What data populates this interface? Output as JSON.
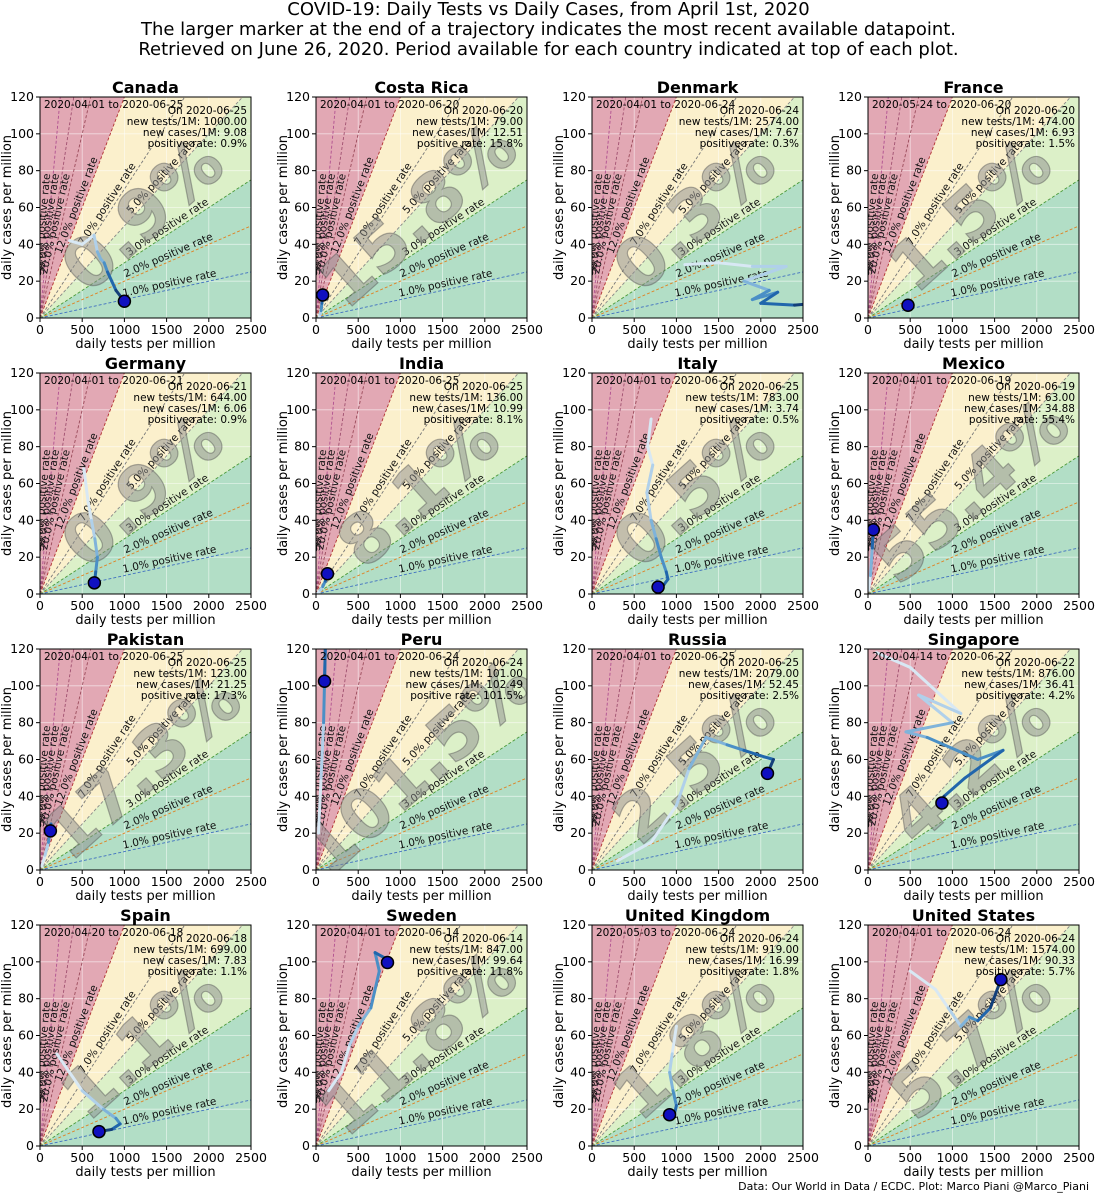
{
  "header": {
    "lines": [
      "COVID-19: Daily Tests vs Daily Cases, from April 1st, 2020",
      "The larger marker at the end of a trajectory indicates the most recent available datapoint.",
      "Retrieved on June 26, 2020. Period available for each country indicated at top of each plot."
    ]
  },
  "footer": "Data: Our World in Data / ECDC. Plot: Marco Piani @Marco_Piani",
  "rate_lines": [
    {
      "rate": 50.0,
      "label": "50.0% positive rate",
      "color": "#b05090"
    },
    {
      "rate": 30.0,
      "label": "30.0% positive rate",
      "color": "#a05070"
    },
    {
      "rate": 20.0,
      "label": "20.0% positive rate",
      "color": "#9a4a5a"
    },
    {
      "rate": 12.0,
      "label": "12.0% positive rate",
      "color": "#b03030"
    },
    {
      "rate": 7.0,
      "label": "7.0% positive rate",
      "color": "#777777"
    },
    {
      "rate": 5.0,
      "label": "5.0% positive rate",
      "color": "#888888"
    },
    {
      "rate": 3.0,
      "label": "3.0% positive rate",
      "color": "#4a9a3a"
    },
    {
      "rate": 2.0,
      "label": "2.0% positive rate",
      "color": "#e08020"
    },
    {
      "rate": 1.0,
      "label": "1.0% positive rate",
      "color": "#4070c0"
    }
  ],
  "zone_colors": [
    "#e2a8b4",
    "#fbf0cc",
    "#dcf0c8",
    "#b2dec6"
  ],
  "axis": {
    "xlabel": "daily tests per million",
    "ylabel": "daily cases per million",
    "xlim": [
      0,
      2500
    ],
    "ylim": [
      0,
      120
    ],
    "xticks": [
      0,
      500,
      1000,
      1500,
      2000,
      2500
    ],
    "yticks": [
      0,
      20,
      40,
      60,
      80,
      100,
      120
    ]
  },
  "chart_data": [
    {
      "type": "line",
      "country": "Canada",
      "period": "2020-04-01 to 2020-06-25",
      "date": "On 2020-06-25",
      "tests": "new tests/1M: 1000.00",
      "cases": "new cases/1M: 9.08",
      "rate": "positive rate: 0.9%",
      "watermark": "0.9%",
      "x": [
        350,
        500,
        640,
        680,
        720,
        760,
        800,
        850,
        900,
        1000
      ],
      "y": [
        42,
        40,
        45,
        36,
        32,
        30,
        25,
        20,
        15,
        9.08
      ]
    },
    {
      "type": "line",
      "country": "Costa Rica",
      "period": "2020-04-01 to 2020-06-20",
      "date": "On 2020-06-20",
      "tests": "new tests/1M: 79.00",
      "cases": "new cases/1M: 12.51",
      "rate": "positive rate: 15.8%",
      "watermark": "15.8%",
      "x": [
        40,
        50,
        60,
        70,
        79
      ],
      "y": [
        1,
        2,
        4,
        8,
        12.51
      ]
    },
    {
      "type": "line",
      "country": "Denmark",
      "period": "2020-04-01 to 2020-06-24",
      "date": "On 2020-06-24",
      "tests": "new tests/1M: 2574.00",
      "cases": "new cases/1M: 7.67",
      "rate": "positive rate: 0.3%",
      "watermark": "0.3%",
      "x": [
        1100,
        1500,
        1900,
        2300,
        1800,
        2100,
        1900,
        2200,
        2000,
        2400,
        2574
      ],
      "y": [
        29,
        30,
        28,
        28,
        20,
        15,
        10,
        14,
        8,
        7,
        7.67
      ]
    },
    {
      "type": "line",
      "country": "France",
      "period": "2020-05-24 to 2020-06-20",
      "date": "On 2020-06-20",
      "tests": "new tests/1M: 474.00",
      "cases": "new cases/1M: 6.93",
      "rate": "positive rate: 1.5%",
      "watermark": "1.5%",
      "x": [
        470,
        472,
        474
      ],
      "y": [
        8,
        7.5,
        6.93
      ]
    },
    {
      "type": "line",
      "country": "Germany",
      "period": "2020-04-01 to 2020-06-21",
      "date": "On 2020-06-21",
      "tests": "new tests/1M: 644.00",
      "cases": "new cases/1M: 6.06",
      "rate": "positive rate: 0.9%",
      "watermark": "0.9%",
      "x": [
        520,
        570,
        610,
        650,
        680,
        660,
        650,
        644
      ],
      "y": [
        68,
        50,
        40,
        30,
        20,
        12,
        8,
        6.06
      ]
    },
    {
      "type": "line",
      "country": "India",
      "period": "2020-04-01 to 2020-06-25",
      "date": "On 2020-06-25",
      "tests": "new tests/1M: 136.00",
      "cases": "new cases/1M: 10.99",
      "rate": "positive rate: 8.1%",
      "watermark": "8.1%",
      "x": [
        20,
        50,
        80,
        110,
        136
      ],
      "y": [
        0.5,
        2,
        4,
        7,
        10.99
      ]
    },
    {
      "type": "line",
      "country": "Italy",
      "period": "2020-04-01 to 2020-06-25",
      "date": "On 2020-06-25",
      "tests": "new tests/1M: 783.00",
      "cases": "new cases/1M: 3.74",
      "rate": "positive rate: 0.5%",
      "watermark": "0.5%",
      "x": [
        700,
        660,
        720,
        650,
        700,
        760,
        820,
        880,
        900,
        850,
        783
      ],
      "y": [
        95,
        80,
        70,
        55,
        40,
        30,
        20,
        12,
        8,
        5,
        3.74
      ]
    },
    {
      "type": "line",
      "country": "Mexico",
      "period": "2020-04-01 to 2020-06-19",
      "date": "On 2020-06-19",
      "tests": "new tests/1M: 63.00",
      "cases": "new cases/1M: 34.88",
      "rate": "positive rate: 55.4%",
      "watermark": "55.4%",
      "x": [
        10,
        30,
        50,
        63
      ],
      "y": [
        2,
        10,
        25,
        34.88
      ]
    },
    {
      "type": "line",
      "country": "Pakistan",
      "period": "2020-04-01 to 2020-06-25",
      "date": "On 2020-06-25",
      "tests": "new tests/1M: 123.00",
      "cases": "new cases/1M: 21.25",
      "rate": "positive rate: 17.3%",
      "watermark": "17.3%",
      "x": [
        20,
        60,
        100,
        130,
        123
      ],
      "y": [
        2,
        8,
        15,
        25,
        21.25
      ]
    },
    {
      "type": "line",
      "country": "Peru",
      "period": "2020-04-01 to 2020-06-24",
      "date": "On 2020-06-24",
      "tests": "new tests/1M: 101.00",
      "cases": "new cases/1M: 102.49",
      "rate": "positive rate: 101.5%",
      "watermark": "101.5%",
      "x": [
        30,
        60,
        90,
        110,
        101
      ],
      "y": [
        20,
        50,
        80,
        120,
        102.49
      ]
    },
    {
      "type": "line",
      "country": "Russia",
      "period": "2020-04-01 to 2020-06-25",
      "date": "On 2020-06-25",
      "tests": "new tests/1M: 2079.00",
      "cases": "new cases/1M: 52.45",
      "rate": "positive rate: 2.5%",
      "watermark": "2.5%",
      "x": [
        300,
        700,
        1000,
        1150,
        1350,
        1600,
        1800,
        2000,
        2150,
        2079
      ],
      "y": [
        5,
        15,
        35,
        55,
        72,
        68,
        65,
        62,
        60,
        52.45
      ]
    },
    {
      "type": "line",
      "country": "Singapore",
      "period": "2020-04-14 to 2020-06-22",
      "date": "On 2020-06-22",
      "tests": "new tests/1M: 876.00",
      "cases": "new cases/1M: 36.41",
      "rate": "positive rate: 4.2%",
      "watermark": "4.2%",
      "x": [
        100,
        500,
        1100,
        600,
        1000,
        450,
        700,
        1300,
        1600,
        1150,
        900,
        876
      ],
      "y": [
        118,
        110,
        85,
        95,
        80,
        75,
        72,
        60,
        65,
        50,
        40,
        36.41
      ]
    },
    {
      "type": "line",
      "country": "Spain",
      "period": "2020-04-20 to 2020-06-18",
      "date": "On 2020-06-18",
      "tests": "new tests/1M: 699.00",
      "cases": "new cases/1M: 7.83",
      "rate": "positive rate: 1.1%",
      "watermark": "1.1%",
      "x": [
        200,
        500,
        750,
        900,
        950,
        850,
        699
      ],
      "y": [
        50,
        30,
        20,
        15,
        12,
        9,
        7.83
      ]
    },
    {
      "type": "line",
      "country": "Sweden",
      "period": "2020-04-01 to 2020-06-14",
      "date": "On 2020-06-14",
      "tests": "new tests/1M: 847.00",
      "cases": "new cases/1M: 99.64",
      "rate": "positive rate: 11.8%",
      "watermark": "11.8%",
      "x": [
        150,
        300,
        400,
        500,
        650,
        750,
        700,
        820,
        847
      ],
      "y": [
        30,
        40,
        55,
        65,
        75,
        95,
        105,
        102,
        99.64
      ]
    },
    {
      "type": "line",
      "country": "United Kingdom",
      "period": "2020-05-03 to 2020-06-24",
      "date": "On 2020-06-24",
      "tests": "new tests/1M: 919.00",
      "cases": "new cases/1M: 16.99",
      "rate": "positive rate: 1.8%",
      "watermark": "1.8%",
      "x": [
        1000,
        950,
        920,
        960,
        1000,
        980,
        919
      ],
      "y": [
        65,
        50,
        40,
        30,
        22,
        18,
        16.99
      ]
    },
    {
      "type": "line",
      "country": "United States",
      "period": "2020-04-01 to 2020-06-24",
      "date": "On 2020-06-24",
      "tests": "new tests/1M: 1574.00",
      "cases": "new cases/1M: 90.33",
      "rate": "positive rate: 5.7%",
      "watermark": "5.7%",
      "x": [
        500,
        800,
        950,
        1100,
        1200,
        1300,
        1450,
        1574
      ],
      "y": [
        95,
        85,
        75,
        65,
        70,
        68,
        75,
        90.33
      ]
    }
  ]
}
